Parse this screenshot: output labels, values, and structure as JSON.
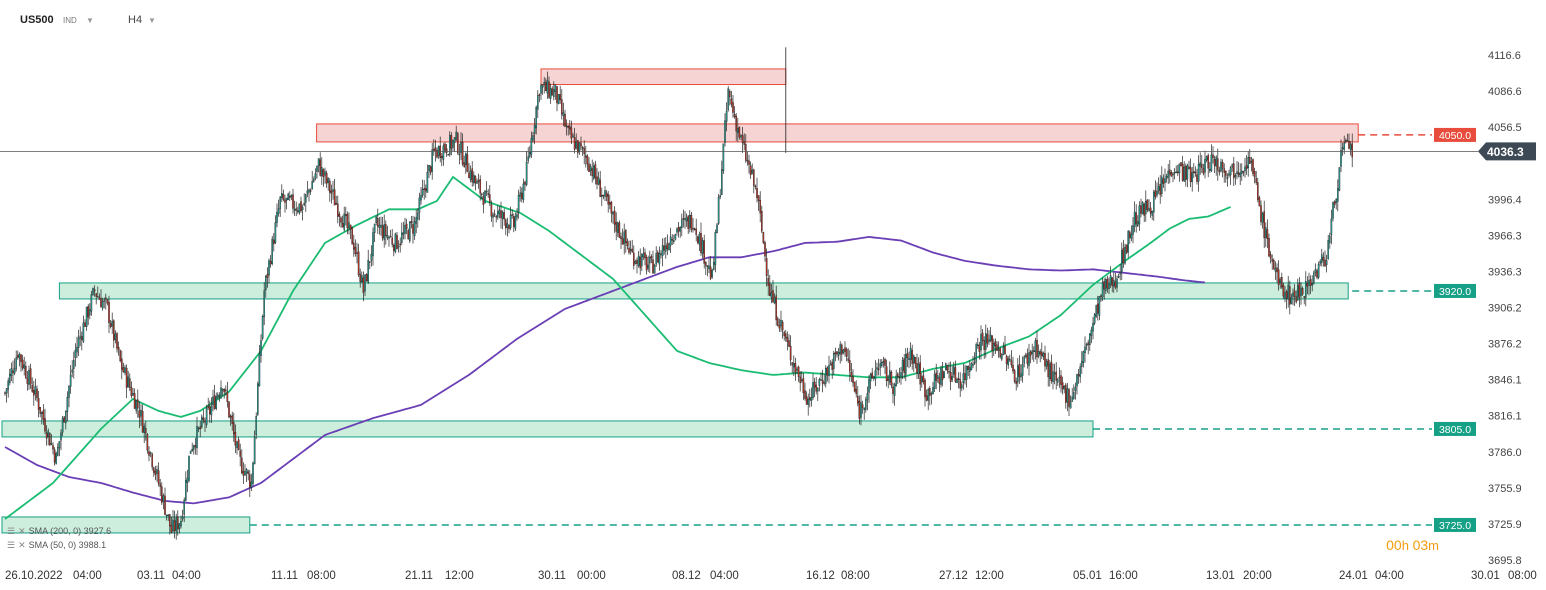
{
  "header": {
    "symbol": "US500",
    "exchange": "IND",
    "timeframe": "H4"
  },
  "legend": {
    "sma200": "SMA (200, 0) 3927.6",
    "sma50": "SMA (50, 0) 3988.1"
  },
  "countdown": {
    "hours": "00",
    "h": "h",
    "minutes": "03",
    "m": "m"
  },
  "colors": {
    "up": "#26a69a",
    "down": "#c0392b",
    "candle_outline": "#222222",
    "sma50": "#1abc72",
    "sma200": "#6a3fb5",
    "resistance": "#e74c3c",
    "support": "#16a085",
    "price_tag": "#3d4a56"
  },
  "chart_data": {
    "type": "candlestick",
    "instrument": "US500",
    "timeframe": "H4",
    "ylim": [
      3695.8,
      4125
    ],
    "y_ticks": [
      "4116.6",
      "4086.6",
      "4056.5",
      "4026.4",
      "3996.4",
      "3966.3",
      "3936.3",
      "3906.2",
      "3876.2",
      "3846.1",
      "3816.1",
      "3786.0",
      "3755.9",
      "3725.9",
      "3695.8"
    ],
    "x_ticks": [
      "26.10.2022",
      "04:00",
      "03.11",
      "04:00",
      "11.11",
      "08:00",
      "21.11",
      "12:00",
      "30.11",
      "00:00",
      "08.12",
      "04:00",
      "16.12",
      "08:00",
      "27.12",
      "12:00",
      "05.01",
      "16:00",
      "13.01",
      "20:00",
      "24.01",
      "04:00",
      "30.01",
      "08:00"
    ],
    "last_price": "4036.3",
    "levels": [
      {
        "value": 4050.0,
        "label": "4050.0",
        "type": "resistance",
        "from": "11.11"
      },
      {
        "value": 3920.0,
        "label": "3920.0",
        "type": "support",
        "from": "26.10.2022"
      },
      {
        "value": 3805.0,
        "label": "3805.0",
        "type": "support",
        "from": "26.10.2022"
      },
      {
        "value": 3725.0,
        "label": "3725.0",
        "type": "support",
        "from": "26.10.2022"
      }
    ],
    "series": [
      {
        "name": "SMA (50, 0)",
        "last": 3988.1
      },
      {
        "name": "SMA (200, 0)",
        "last": 3927.6
      }
    ],
    "close_path": [
      [
        0,
        3835
      ],
      [
        8,
        3870
      ],
      [
        20,
        3830
      ],
      [
        32,
        3780
      ],
      [
        44,
        3870
      ],
      [
        56,
        3920
      ],
      [
        64,
        3905
      ],
      [
        72,
        3860
      ],
      [
        84,
        3820
      ],
      [
        96,
        3760
      ],
      [
        104,
        3720
      ],
      [
        110,
        3730
      ],
      [
        116,
        3790
      ],
      [
        128,
        3820
      ],
      [
        136,
        3845
      ],
      [
        146,
        3780
      ],
      [
        154,
        3760
      ],
      [
        162,
        3920
      ],
      [
        172,
        3995
      ],
      [
        186,
        3990
      ],
      [
        196,
        4025
      ],
      [
        208,
        3990
      ],
      [
        218,
        3960
      ],
      [
        224,
        3920
      ],
      [
        232,
        3975
      ],
      [
        244,
        3960
      ],
      [
        256,
        3975
      ],
      [
        268,
        4035
      ],
      [
        282,
        4045
      ],
      [
        294,
        4010
      ],
      [
        306,
        3985
      ],
      [
        318,
        3975
      ],
      [
        326,
        4020
      ],
      [
        334,
        4090
      ],
      [
        344,
        4085
      ],
      [
        352,
        4050
      ],
      [
        364,
        4030
      ],
      [
        380,
        3980
      ],
      [
        392,
        3950
      ],
      [
        404,
        3940
      ],
      [
        418,
        3970
      ],
      [
        430,
        3980
      ],
      [
        442,
        3930
      ],
      [
        452,
        4085
      ],
      [
        460,
        4045
      ],
      [
        470,
        4000
      ],
      [
        478,
        3920
      ],
      [
        490,
        3870
      ],
      [
        502,
        3830
      ],
      [
        512,
        3850
      ],
      [
        524,
        3875
      ],
      [
        534,
        3820
      ],
      [
        546,
        3860
      ],
      [
        556,
        3840
      ],
      [
        566,
        3870
      ],
      [
        576,
        3835
      ],
      [
        588,
        3855
      ],
      [
        598,
        3845
      ],
      [
        610,
        3880
      ],
      [
        620,
        3875
      ],
      [
        632,
        3850
      ],
      [
        644,
        3875
      ],
      [
        656,
        3845
      ],
      [
        666,
        3830
      ],
      [
        674,
        3865
      ],
      [
        686,
        3920
      ],
      [
        694,
        3930
      ],
      [
        706,
        3980
      ],
      [
        718,
        3995
      ],
      [
        730,
        4025
      ],
      [
        742,
        4015
      ],
      [
        754,
        4030
      ],
      [
        766,
        4020
      ],
      [
        778,
        4030
      ],
      [
        788,
        3965
      ],
      [
        796,
        3925
      ],
      [
        804,
        3915
      ],
      [
        814,
        3925
      ],
      [
        826,
        3950
      ],
      [
        836,
        4040
      ],
      [
        842,
        4036
      ]
    ],
    "sma50_path": [
      [
        0,
        3730
      ],
      [
        30,
        3760
      ],
      [
        60,
        3805
      ],
      [
        80,
        3830
      ],
      [
        96,
        3820
      ],
      [
        110,
        3815
      ],
      [
        122,
        3820
      ],
      [
        140,
        3836
      ],
      [
        160,
        3870
      ],
      [
        180,
        3920
      ],
      [
        200,
        3960
      ],
      [
        220,
        3975
      ],
      [
        240,
        3988
      ],
      [
        258,
        3988
      ],
      [
        270,
        3995
      ],
      [
        280,
        4015
      ],
      [
        300,
        3995
      ],
      [
        322,
        3985
      ],
      [
        340,
        3970
      ],
      [
        360,
        3950
      ],
      [
        380,
        3930
      ],
      [
        400,
        3900
      ],
      [
        420,
        3870
      ],
      [
        440,
        3860
      ],
      [
        460,
        3854
      ],
      [
        480,
        3850
      ],
      [
        500,
        3852
      ],
      [
        520,
        3850
      ],
      [
        540,
        3848
      ],
      [
        560,
        3848
      ],
      [
        580,
        3855
      ],
      [
        600,
        3860
      ],
      [
        620,
        3872
      ],
      [
        640,
        3882
      ],
      [
        660,
        3900
      ],
      [
        680,
        3925
      ],
      [
        700,
        3945
      ],
      [
        716,
        3960
      ],
      [
        728,
        3972
      ],
      [
        740,
        3980
      ],
      [
        752,
        3982
      ],
      [
        766,
        3990
      ]
    ],
    "sma200_path": [
      [
        0,
        3790
      ],
      [
        20,
        3775
      ],
      [
        40,
        3765
      ],
      [
        60,
        3760
      ],
      [
        80,
        3752
      ],
      [
        100,
        3745
      ],
      [
        118,
        3743
      ],
      [
        140,
        3748
      ],
      [
        160,
        3760
      ],
      [
        180,
        3780
      ],
      [
        200,
        3800
      ],
      [
        230,
        3814
      ],
      [
        260,
        3825
      ],
      [
        290,
        3850
      ],
      [
        320,
        3880
      ],
      [
        350,
        3905
      ],
      [
        380,
        3920
      ],
      [
        400,
        3930
      ],
      [
        420,
        3940
      ],
      [
        440,
        3948
      ],
      [
        460,
        3948
      ],
      [
        480,
        3953
      ],
      [
        500,
        3960
      ],
      [
        520,
        3961
      ],
      [
        540,
        3965
      ],
      [
        560,
        3962
      ],
      [
        580,
        3952
      ],
      [
        600,
        3945
      ],
      [
        620,
        3941
      ],
      [
        640,
        3938
      ],
      [
        660,
        3937
      ],
      [
        680,
        3938
      ],
      [
        700,
        3935
      ],
      [
        720,
        3932
      ],
      [
        736,
        3929
      ],
      [
        750,
        3927
      ]
    ]
  }
}
